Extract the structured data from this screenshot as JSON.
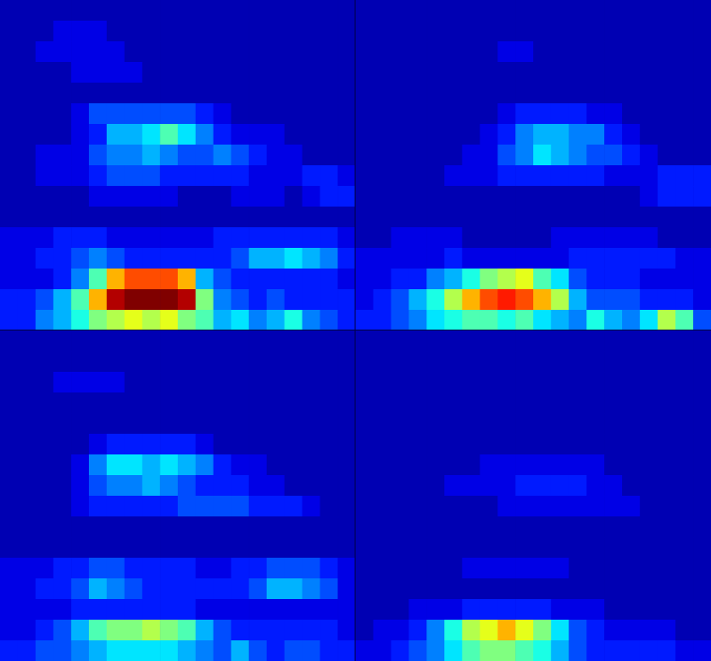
{
  "chart_data": [
    {
      "type": "heatmap",
      "xlim": [
        0,
        20
      ],
      "ylim": [
        0,
        16
      ],
      "color_range": [
        0,
        20
      ],
      "tick_labels": false,
      "cells": [
        [
          1,
          1,
          1,
          1,
          1,
          1,
          1,
          1,
          1,
          1,
          1,
          1,
          1,
          1,
          1,
          1,
          1,
          1,
          1,
          1
        ],
        [
          1,
          1,
          1,
          2,
          2,
          2,
          1,
          1,
          1,
          1,
          1,
          1,
          1,
          1,
          1,
          1,
          1,
          1,
          1,
          1
        ],
        [
          1,
          1,
          2,
          2,
          2,
          2,
          2,
          1,
          1,
          1,
          1,
          1,
          1,
          1,
          1,
          1,
          1,
          1,
          1,
          1
        ],
        [
          1,
          1,
          1,
          1,
          2,
          2,
          2,
          2,
          1,
          1,
          1,
          1,
          1,
          1,
          1,
          1,
          1,
          1,
          1,
          1
        ],
        [
          1,
          1,
          1,
          1,
          1,
          1,
          1,
          1,
          1,
          1,
          1,
          1,
          1,
          1,
          1,
          1,
          1,
          1,
          1,
          1
        ],
        [
          1,
          1,
          1,
          1,
          2,
          4,
          4,
          4,
          4,
          4,
          4,
          3,
          2,
          1,
          1,
          1,
          1,
          1,
          1,
          1
        ],
        [
          1,
          1,
          1,
          1,
          2,
          3,
          6,
          6,
          7,
          9,
          7,
          5,
          3,
          2,
          2,
          2,
          1,
          1,
          1,
          1
        ],
        [
          1,
          1,
          2,
          2,
          2,
          4,
          5,
          5,
          6,
          5,
          4,
          4,
          5,
          4,
          3,
          2,
          2,
          1,
          1,
          1
        ],
        [
          1,
          1,
          2,
          2,
          2,
          3,
          4,
          4,
          4,
          3,
          3,
          3,
          3,
          3,
          2,
          2,
          2,
          3,
          3,
          2
        ],
        [
          1,
          1,
          1,
          1,
          1,
          2,
          2,
          2,
          2,
          2,
          1,
          1,
          1,
          2,
          2,
          2,
          1,
          2,
          3,
          3
        ],
        [
          1,
          1,
          1,
          1,
          1,
          1,
          1,
          1,
          1,
          1,
          1,
          1,
          1,
          1,
          1,
          1,
          1,
          1,
          1,
          1
        ],
        [
          2,
          2,
          2,
          3,
          3,
          3,
          2,
          2,
          2,
          2,
          2,
          2,
          3,
          3,
          3,
          3,
          3,
          3,
          3,
          2
        ],
        [
          2,
          2,
          3,
          3,
          4,
          5,
          4,
          3,
          3,
          3,
          3,
          3,
          3,
          4,
          6,
          6,
          7,
          6,
          5,
          3
        ],
        [
          2,
          2,
          2,
          3,
          5,
          9,
          14,
          16,
          16,
          16,
          14,
          6,
          4,
          3,
          3,
          3,
          3,
          3,
          3,
          2
        ],
        [
          3,
          3,
          4,
          6,
          9,
          14,
          19,
          20,
          20,
          20,
          19,
          10,
          5,
          4,
          3,
          4,
          3,
          3,
          3,
          3
        ],
        [
          3,
          3,
          5,
          6,
          8,
          10,
          11,
          12,
          11,
          12,
          10,
          9,
          6,
          7,
          5,
          6,
          8,
          5,
          4,
          3
        ]
      ]
    },
    {
      "type": "heatmap",
      "xlim": [
        0,
        20
      ],
      "ylim": [
        0,
        16
      ],
      "color_range": [
        0,
        20
      ],
      "tick_labels": false,
      "cells": [
        [
          1,
          1,
          1,
          1,
          1,
          1,
          1,
          1,
          1,
          1,
          1,
          1,
          1,
          1,
          1,
          1,
          1,
          1,
          1,
          1
        ],
        [
          1,
          1,
          1,
          1,
          1,
          1,
          1,
          1,
          1,
          1,
          1,
          1,
          1,
          1,
          1,
          1,
          1,
          1,
          1,
          1
        ],
        [
          1,
          1,
          1,
          1,
          1,
          1,
          1,
          1,
          2,
          2,
          1,
          1,
          1,
          1,
          1,
          1,
          1,
          1,
          1,
          1
        ],
        [
          1,
          1,
          1,
          1,
          1,
          1,
          1,
          1,
          1,
          1,
          1,
          1,
          1,
          1,
          1,
          1,
          1,
          1,
          1,
          1
        ],
        [
          1,
          1,
          1,
          1,
          1,
          1,
          1,
          1,
          1,
          1,
          1,
          1,
          1,
          1,
          1,
          1,
          1,
          1,
          1,
          1
        ],
        [
          1,
          1,
          1,
          1,
          1,
          1,
          1,
          1,
          2,
          3,
          3,
          3,
          3,
          2,
          2,
          1,
          1,
          1,
          1,
          1
        ],
        [
          1,
          1,
          1,
          1,
          1,
          1,
          1,
          2,
          3,
          5,
          6,
          6,
          5,
          5,
          3,
          2,
          1,
          1,
          1,
          1
        ],
        [
          1,
          1,
          1,
          1,
          1,
          1,
          2,
          2,
          4,
          5,
          7,
          6,
          5,
          4,
          4,
          3,
          2,
          1,
          1,
          1
        ],
        [
          1,
          1,
          1,
          1,
          1,
          2,
          2,
          2,
          3,
          3,
          3,
          3,
          3,
          3,
          2,
          2,
          2,
          3,
          3,
          3
        ],
        [
          1,
          1,
          1,
          1,
          1,
          1,
          1,
          1,
          1,
          1,
          1,
          1,
          1,
          1,
          1,
          1,
          2,
          3,
          3,
          3
        ],
        [
          1,
          1,
          1,
          1,
          1,
          1,
          1,
          1,
          1,
          1,
          1,
          1,
          1,
          1,
          1,
          1,
          1,
          1,
          1,
          1
        ],
        [
          1,
          1,
          2,
          2,
          2,
          2,
          1,
          1,
          1,
          1,
          1,
          2,
          2,
          2,
          2,
          2,
          2,
          1,
          1,
          1
        ],
        [
          2,
          2,
          2,
          2,
          2,
          3,
          2,
          2,
          2,
          2,
          2,
          2,
          3,
          3,
          3,
          3,
          3,
          3,
          2,
          2
        ],
        [
          2,
          2,
          3,
          3,
          5,
          6,
          8,
          10,
          11,
          12,
          9,
          7,
          4,
          3,
          3,
          3,
          2,
          2,
          2,
          2
        ],
        [
          2,
          3,
          4,
          6,
          8,
          11,
          14,
          16,
          17,
          16,
          14,
          11,
          6,
          4,
          4,
          4,
          3,
          3,
          3,
          2
        ],
        [
          3,
          3,
          4,
          5,
          7,
          8,
          9,
          9,
          8,
          9,
          7,
          6,
          5,
          8,
          6,
          5,
          7,
          11,
          9,
          4
        ]
      ]
    },
    {
      "type": "heatmap",
      "xlim": [
        0,
        20
      ],
      "ylim": [
        0,
        16
      ],
      "color_range": [
        0,
        20
      ],
      "tick_labels": false,
      "cells": [
        [
          1,
          1,
          1,
          1,
          1,
          1,
          1,
          1,
          1,
          1,
          1,
          1,
          1,
          1,
          1,
          1,
          1,
          1,
          1,
          1
        ],
        [
          1,
          1,
          1,
          1,
          1,
          1,
          1,
          1,
          1,
          1,
          1,
          1,
          1,
          1,
          1,
          1,
          1,
          1,
          1,
          1
        ],
        [
          1,
          1,
          1,
          2,
          2,
          2,
          2,
          1,
          1,
          1,
          1,
          1,
          1,
          1,
          1,
          1,
          1,
          1,
          1,
          1
        ],
        [
          1,
          1,
          1,
          1,
          1,
          1,
          1,
          1,
          1,
          1,
          1,
          1,
          1,
          1,
          1,
          1,
          1,
          1,
          1,
          1
        ],
        [
          1,
          1,
          1,
          1,
          1,
          1,
          1,
          1,
          1,
          1,
          1,
          1,
          1,
          1,
          1,
          1,
          1,
          1,
          1,
          1
        ],
        [
          1,
          1,
          1,
          1,
          1,
          2,
          3,
          3,
          3,
          3,
          3,
          2,
          1,
          1,
          1,
          1,
          1,
          1,
          1,
          1
        ],
        [
          1,
          1,
          1,
          1,
          2,
          5,
          7,
          7,
          6,
          7,
          6,
          5,
          3,
          2,
          2,
          1,
          1,
          1,
          1,
          1
        ],
        [
          1,
          1,
          1,
          1,
          2,
          4,
          5,
          5,
          6,
          5,
          4,
          3,
          3,
          3,
          2,
          2,
          1,
          1,
          1,
          1
        ],
        [
          1,
          1,
          1,
          1,
          2,
          3,
          3,
          3,
          3,
          3,
          4,
          4,
          4,
          4,
          3,
          3,
          3,
          2,
          1,
          1
        ],
        [
          1,
          1,
          1,
          1,
          1,
          1,
          1,
          1,
          1,
          1,
          1,
          1,
          1,
          1,
          1,
          1,
          1,
          1,
          1,
          1
        ],
        [
          1,
          1,
          1,
          1,
          1,
          1,
          1,
          1,
          1,
          1,
          1,
          1,
          1,
          1,
          1,
          1,
          1,
          1,
          1,
          1
        ],
        [
          2,
          2,
          2,
          3,
          3,
          4,
          4,
          3,
          3,
          3,
          3,
          2,
          2,
          3,
          3,
          4,
          4,
          4,
          3,
          2
        ],
        [
          2,
          2,
          3,
          3,
          4,
          6,
          5,
          4,
          3,
          3,
          3,
          3,
          3,
          3,
          4,
          6,
          6,
          5,
          4,
          2
        ],
        [
          2,
          2,
          2,
          2,
          3,
          3,
          3,
          3,
          3,
          3,
          3,
          2,
          2,
          2,
          2,
          2,
          2,
          2,
          2,
          2
        ],
        [
          2,
          2,
          3,
          4,
          6,
          9,
          10,
          10,
          11,
          10,
          9,
          6,
          4,
          3,
          3,
          3,
          3,
          3,
          3,
          2
        ],
        [
          3,
          3,
          4,
          4,
          5,
          6,
          7,
          7,
          7,
          7,
          6,
          5,
          4,
          6,
          4,
          3,
          4,
          4,
          3,
          3
        ]
      ]
    },
    {
      "type": "heatmap",
      "xlim": [
        0,
        20
      ],
      "ylim": [
        0,
        16
      ],
      "color_range": [
        0,
        20
      ],
      "tick_labels": false,
      "cells": [
        [
          1,
          1,
          1,
          1,
          1,
          1,
          1,
          1,
          1,
          1,
          1,
          1,
          1,
          1,
          1,
          1,
          1,
          1,
          1,
          1
        ],
        [
          1,
          1,
          1,
          1,
          1,
          1,
          1,
          1,
          1,
          1,
          1,
          1,
          1,
          1,
          1,
          1,
          1,
          1,
          1,
          1
        ],
        [
          1,
          1,
          1,
          1,
          1,
          1,
          1,
          1,
          1,
          1,
          1,
          1,
          1,
          1,
          1,
          1,
          1,
          1,
          1,
          1
        ],
        [
          1,
          1,
          1,
          1,
          1,
          1,
          1,
          1,
          1,
          1,
          1,
          1,
          1,
          1,
          1,
          1,
          1,
          1,
          1,
          1
        ],
        [
          1,
          1,
          1,
          1,
          1,
          1,
          1,
          1,
          1,
          1,
          1,
          1,
          1,
          1,
          1,
          1,
          1,
          1,
          1,
          1
        ],
        [
          1,
          1,
          1,
          1,
          1,
          1,
          1,
          1,
          1,
          1,
          1,
          1,
          1,
          1,
          1,
          1,
          1,
          1,
          1,
          1
        ],
        [
          1,
          1,
          1,
          1,
          1,
          1,
          1,
          2,
          2,
          2,
          2,
          2,
          2,
          2,
          1,
          1,
          1,
          1,
          1,
          1
        ],
        [
          1,
          1,
          1,
          1,
          1,
          2,
          2,
          2,
          2,
          3,
          3,
          3,
          3,
          2,
          2,
          1,
          1,
          1,
          1,
          1
        ],
        [
          1,
          1,
          1,
          1,
          1,
          1,
          1,
          1,
          2,
          2,
          2,
          2,
          2,
          2,
          2,
          2,
          1,
          1,
          1,
          1
        ],
        [
          1,
          1,
          1,
          1,
          1,
          1,
          1,
          1,
          1,
          1,
          1,
          1,
          1,
          1,
          1,
          1,
          1,
          1,
          1,
          1
        ],
        [
          1,
          1,
          1,
          1,
          1,
          1,
          1,
          1,
          1,
          1,
          1,
          1,
          1,
          1,
          1,
          1,
          1,
          1,
          1,
          1
        ],
        [
          1,
          1,
          1,
          1,
          1,
          1,
          2,
          2,
          2,
          2,
          2,
          2,
          1,
          1,
          1,
          1,
          1,
          1,
          1,
          1
        ],
        [
          1,
          1,
          1,
          1,
          1,
          1,
          1,
          1,
          1,
          1,
          1,
          1,
          1,
          1,
          1,
          1,
          1,
          1,
          1,
          1
        ],
        [
          1,
          1,
          1,
          2,
          2,
          2,
          3,
          3,
          3,
          3,
          3,
          2,
          2,
          2,
          1,
          1,
          1,
          1,
          1,
          1
        ],
        [
          1,
          2,
          2,
          3,
          5,
          8,
          11,
          12,
          14,
          12,
          10,
          7,
          4,
          3,
          2,
          2,
          2,
          2,
          1,
          1
        ],
        [
          2,
          2,
          3,
          4,
          5,
          7,
          9,
          10,
          10,
          9,
          8,
          6,
          4,
          3,
          3,
          3,
          3,
          3,
          2,
          2
        ]
      ]
    }
  ]
}
